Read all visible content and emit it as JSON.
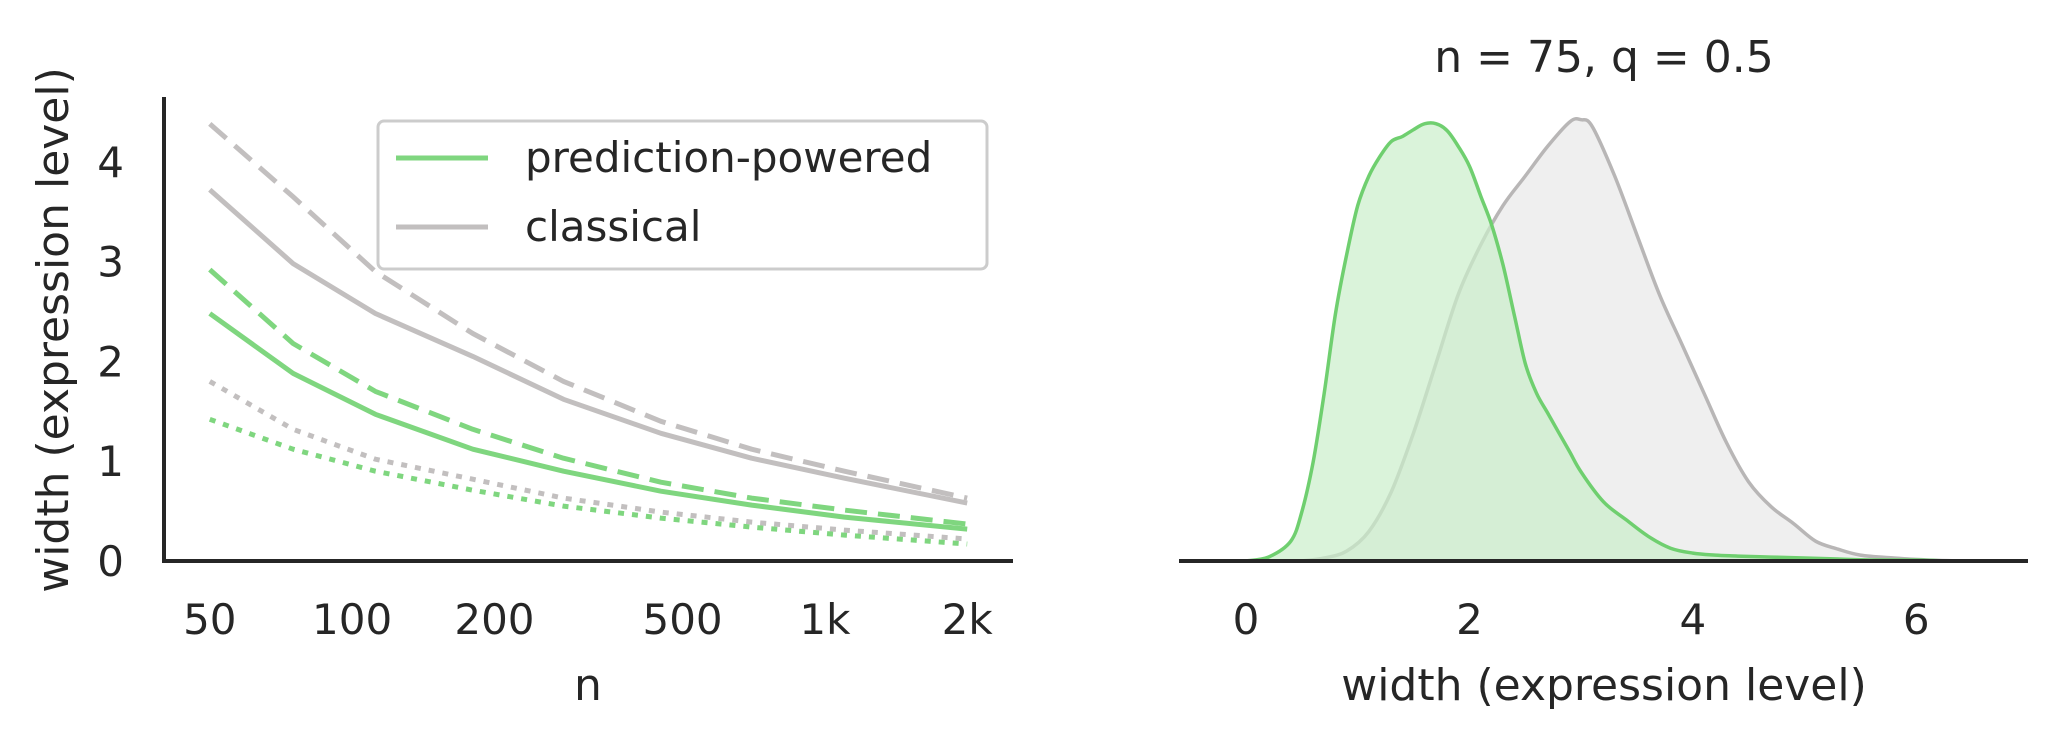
{
  "chart_data": [
    {
      "type": "line",
      "xlabel": "n",
      "ylabel": "width (expression level)",
      "x_scale": "log",
      "x_ticks": [
        50,
        100,
        200,
        500,
        1000,
        2000
      ],
      "x_tick_labels": [
        "50",
        "100",
        "200",
        "500",
        "1k",
        "2k"
      ],
      "y_ticks": [
        0,
        1,
        2,
        3,
        4
      ],
      "y_tick_labels": [
        "0",
        "1",
        "2",
        "3",
        "4"
      ],
      "xlim": [
        40,
        2500
      ],
      "ylim": [
        0,
        4.65
      ],
      "grid": false,
      "legend": {
        "placement": "top-right",
        "entries": [
          {
            "label": "prediction-powered",
            "color": "#7fd67f"
          },
          {
            "label": "classical",
            "color": "#c2bfbf"
          }
        ]
      },
      "x": [
        50,
        75,
        112,
        180,
        280,
        450,
        700,
        1100,
        2000
      ],
      "series": [
        {
          "method": "classical",
          "style": "dashed",
          "color": "#c2bfbf",
          "values": [
            4.38,
            3.65,
            2.9,
            2.28,
            1.8,
            1.4,
            1.12,
            0.9,
            0.63
          ]
        },
        {
          "method": "classical",
          "style": "solid",
          "color": "#c2bfbf",
          "values": [
            3.72,
            2.98,
            2.48,
            2.05,
            1.62,
            1.28,
            1.03,
            0.83,
            0.58
          ]
        },
        {
          "method": "classical",
          "style": "dotted",
          "color": "#c2bfbf",
          "values": [
            1.8,
            1.32,
            1.02,
            0.82,
            0.63,
            0.49,
            0.39,
            0.31,
            0.22
          ]
        },
        {
          "method": "prediction-powered",
          "style": "dashed",
          "color": "#7fd67f",
          "values": [
            2.92,
            2.18,
            1.7,
            1.32,
            1.03,
            0.79,
            0.63,
            0.51,
            0.37
          ]
        },
        {
          "method": "prediction-powered",
          "style": "solid",
          "color": "#7fd67f",
          "values": [
            2.48,
            1.88,
            1.47,
            1.12,
            0.9,
            0.7,
            0.56,
            0.44,
            0.32
          ]
        },
        {
          "method": "prediction-powered",
          "style": "dotted",
          "color": "#7fd67f",
          "values": [
            1.42,
            1.12,
            0.9,
            0.71,
            0.55,
            0.43,
            0.34,
            0.26,
            0.17
          ]
        }
      ]
    },
    {
      "type": "area",
      "title": "n = 75, q = 0.5",
      "xlabel": "width (expression level)",
      "x_ticks": [
        0,
        2,
        4,
        6
      ],
      "x_tick_labels": [
        "0",
        "2",
        "4",
        "6"
      ],
      "xlim": [
        -0.6,
        7.0
      ],
      "ylim": [
        0,
        0.47
      ],
      "y_axis_visible": false,
      "grid": false,
      "series": [
        {
          "method": "classical",
          "color": "#b8b6b6",
          "fill": "#e8e8e8",
          "x": [
            0.5,
            0.7,
            0.9,
            1.1,
            1.3,
            1.5,
            1.7,
            1.9,
            2.1,
            2.3,
            2.5,
            2.7,
            2.9,
            3.0,
            3.1,
            3.3,
            3.5,
            3.7,
            3.9,
            4.1,
            4.3,
            4.5,
            4.7,
            4.9,
            5.1,
            5.3,
            5.5,
            5.8,
            6.1,
            6.4
          ],
          "values": [
            0.0,
            0.003,
            0.01,
            0.03,
            0.07,
            0.13,
            0.2,
            0.27,
            0.32,
            0.36,
            0.39,
            0.42,
            0.445,
            0.447,
            0.44,
            0.39,
            0.33,
            0.27,
            0.22,
            0.17,
            0.12,
            0.08,
            0.055,
            0.038,
            0.02,
            0.012,
            0.006,
            0.003,
            0.001,
            0.0
          ]
        },
        {
          "method": "prediction-powered",
          "color": "#6fcf6f",
          "fill": "#cbeecb",
          "x": [
            0.0,
            0.2,
            0.4,
            0.5,
            0.6,
            0.7,
            0.8,
            0.9,
            1.0,
            1.1,
            1.2,
            1.3,
            1.4,
            1.5,
            1.6,
            1.7,
            1.8,
            1.9,
            2.0,
            2.1,
            2.2,
            2.3,
            2.4,
            2.5,
            2.6,
            2.7,
            2.8,
            2.9,
            3.0,
            3.2,
            3.4,
            3.6,
            3.8,
            4.0,
            4.2,
            4.4,
            4.7,
            5.0,
            5.3,
            5.6,
            6.0,
            6.3
          ],
          "values": [
            0.0,
            0.004,
            0.02,
            0.05,
            0.1,
            0.17,
            0.25,
            0.31,
            0.36,
            0.39,
            0.41,
            0.425,
            0.43,
            0.437,
            0.443,
            0.443,
            0.436,
            0.42,
            0.4,
            0.37,
            0.34,
            0.3,
            0.25,
            0.2,
            0.17,
            0.15,
            0.13,
            0.11,
            0.09,
            0.06,
            0.042,
            0.025,
            0.013,
            0.008,
            0.006,
            0.005,
            0.004,
            0.003,
            0.002,
            0.001,
            0.001,
            0.0
          ]
        }
      ]
    }
  ]
}
